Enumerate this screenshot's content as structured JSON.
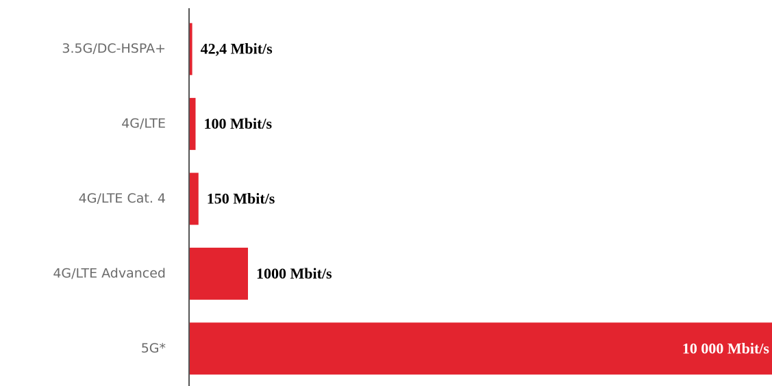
{
  "chart_data": {
    "type": "bar",
    "orientation": "horizontal",
    "categories": [
      "3.5G/DC-HSPA+",
      "4G/LTE",
      "4G/LTE Cat. 4",
      "4G/LTE Advanced",
      "5G*"
    ],
    "values": [
      42.4,
      100,
      150,
      1000,
      10000
    ],
    "value_labels": [
      "42,4 Mbit/s",
      "100 Mbit/s",
      "150 Mbit/s",
      "1000 Mbit/s",
      "10 000 Mbit/s"
    ],
    "color": "#e3242f",
    "xlim": [
      0,
      10000
    ]
  }
}
